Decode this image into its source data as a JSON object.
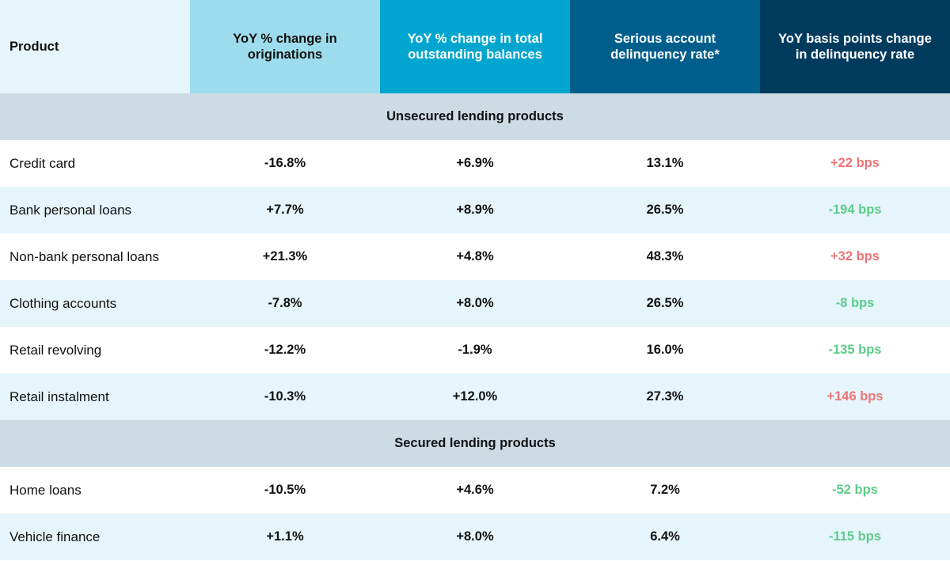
{
  "colors": {
    "header_product_bg": "#e6f5fb",
    "header_col1_bg": "#9ddcec",
    "header_col2_bg": "#00a6cf",
    "header_col3_bg": "#005e8c",
    "header_col4_bg": "#003b5e",
    "header_dark_text": "#111111",
    "header_light_text": "#ffffff",
    "section_bg": "#cddce4",
    "row_white_bg": "#ffffff",
    "row_tint_bg": "#e6f5fb",
    "positive_change": "#ee7474",
    "negative_change": "#5ccc8a"
  },
  "chart_data": {
    "type": "table",
    "columns": [
      "Product",
      "YoY % change in originations",
      "YoY % change in total outstanding balances",
      "Serious account delinquency rate*",
      "YoY basis points change in delinquency rate"
    ],
    "sections": [
      {
        "title": "Unsecured lending products",
        "rows": [
          {
            "product": "Credit card",
            "originations": "-16.8%",
            "balances": "+6.9%",
            "delinquency": "13.1%",
            "bps": "+22 bps",
            "bps_value": 22
          },
          {
            "product": "Bank personal loans",
            "originations": "+7.7%",
            "balances": "+8.9%",
            "delinquency": "26.5%",
            "bps": "-194 bps",
            "bps_value": -194
          },
          {
            "product": "Non-bank personal loans",
            "originations": "+21.3%",
            "balances": "+4.8%",
            "delinquency": "48.3%",
            "bps": "+32 bps",
            "bps_value": 32
          },
          {
            "product": "Clothing accounts",
            "originations": "-7.8%",
            "balances": "+8.0%",
            "delinquency": "26.5%",
            "bps": "-8 bps",
            "bps_value": -8
          },
          {
            "product": "Retail revolving",
            "originations": "-12.2%",
            "balances": "-1.9%",
            "delinquency": "16.0%",
            "bps": "-135 bps",
            "bps_value": -135
          },
          {
            "product": "Retail instalment",
            "originations": "-10.3%",
            "balances": "+12.0%",
            "delinquency": "27.3%",
            "bps": "+146 bps",
            "bps_value": 146
          }
        ]
      },
      {
        "title": "Secured lending products",
        "rows": [
          {
            "product": "Home loans",
            "originations": "-10.5%",
            "balances": "+4.6%",
            "delinquency": "7.2%",
            "bps": "-52 bps",
            "bps_value": -52
          },
          {
            "product": "Vehicle finance",
            "originations": "+1.1%",
            "balances": "+8.0%",
            "delinquency": "6.4%",
            "bps": "-115 bps",
            "bps_value": -115
          }
        ]
      }
    ]
  }
}
